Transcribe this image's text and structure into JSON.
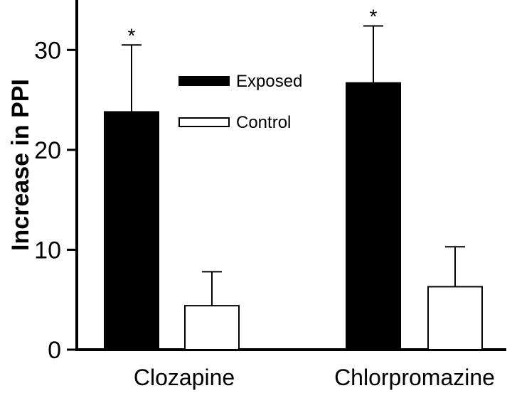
{
  "chart_data": {
    "type": "bar",
    "categories": [
      "Clozapine",
      "Chlorpromazine"
    ],
    "series": [
      {
        "name": "Exposed",
        "values": [
          23.8,
          26.7
        ],
        "errors": [
          6.7,
          5.7
        ],
        "fill": "#000000",
        "significance": [
          "*",
          "*"
        ]
      },
      {
        "name": "Control",
        "values": [
          4.4,
          6.3
        ],
        "errors": [
          3.4,
          4.0
        ],
        "fill": "#ffffff",
        "significance": [
          "",
          ""
        ]
      }
    ],
    "title": "",
    "xlabel": "",
    "ylabel": "Increase in PPI",
    "ylim": [
      0,
      35
    ],
    "yticks": [
      0,
      10,
      20,
      30
    ],
    "grid": false,
    "legend_position": "top-center"
  }
}
